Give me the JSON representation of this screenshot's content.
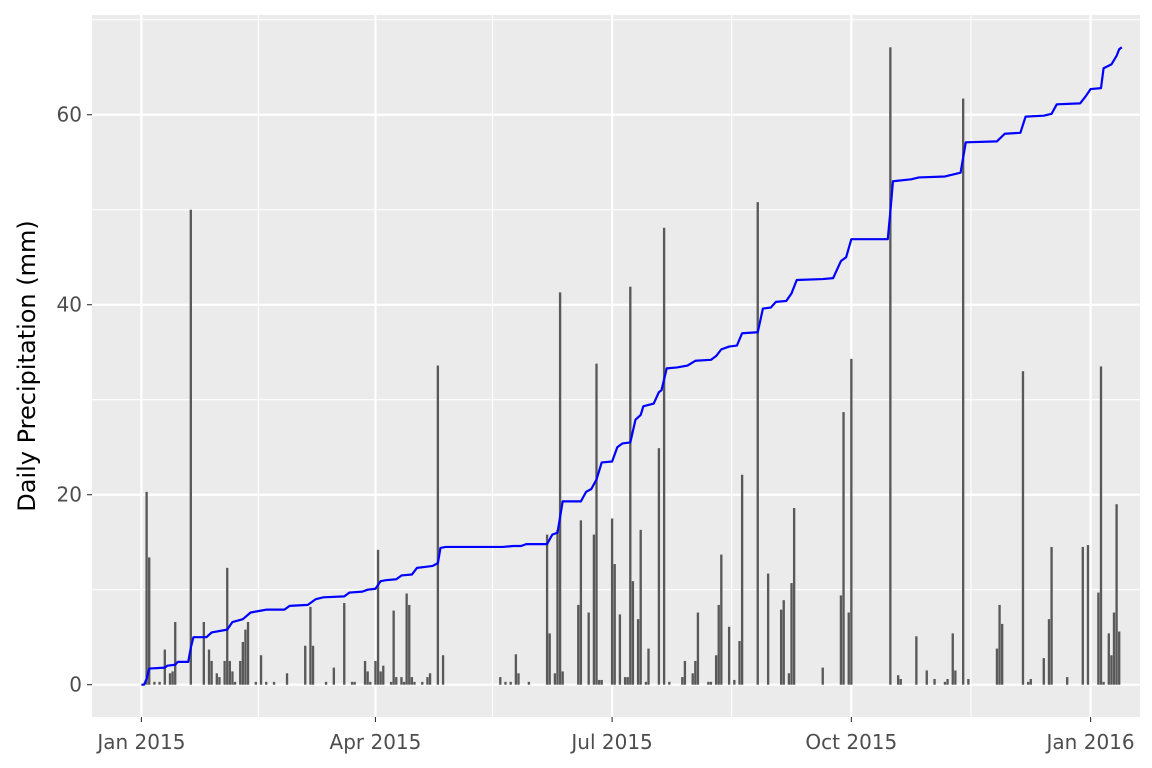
{
  "chart_data": {
    "type": "bar",
    "ylabel": "Daily Precipitation (mm)",
    "xlabel": "",
    "xlim": [
      "2014-12-13",
      "2016-01-20"
    ],
    "ylim": [
      -3.4,
      70.5
    ],
    "grid": true,
    "y_ticks": [
      0,
      20,
      40,
      60
    ],
    "y_tick_labels": [
      "0",
      "20",
      "40",
      "60"
    ],
    "x_ticks": [
      "2015-01-01",
      "2015-04-01",
      "2015-07-01",
      "2015-10-01",
      "2016-01-01"
    ],
    "x_tick_labels": [
      "Jan 2015",
      "Apr 2015",
      "Jul 2015",
      "Oct 2015",
      "Jan 2016"
    ],
    "x_minor_ticks": [
      "2015-02-15",
      "2015-05-16",
      "2015-08-16",
      "2015-11-16"
    ],
    "colors": {
      "panel": "#ebebeb",
      "grid": "#ffffff",
      "bars": "#595959",
      "line": "#0000ff",
      "tick_label": "#4d4d4d"
    },
    "series": [
      {
        "type": "bar",
        "points": [
          [
            "2015-01-03",
            20.3
          ],
          [
            "2015-01-04",
            13.4
          ],
          [
            "2015-01-06",
            0.3
          ],
          [
            "2015-01-08",
            0.3
          ],
          [
            "2015-01-10",
            3.7
          ],
          [
            "2015-01-12",
            1.2
          ],
          [
            "2015-01-13",
            1.4
          ],
          [
            "2015-01-14",
            6.6
          ],
          [
            "2015-01-20",
            50.0
          ],
          [
            "2015-01-25",
            6.6
          ],
          [
            "2015-01-27",
            3.7
          ],
          [
            "2015-01-28",
            2.5
          ],
          [
            "2015-01-30",
            1.2
          ],
          [
            "2015-01-31",
            0.8
          ],
          [
            "2015-02-02",
            2.5
          ],
          [
            "2015-02-03",
            12.3
          ],
          [
            "2015-02-04",
            2.5
          ],
          [
            "2015-02-05",
            1.4
          ],
          [
            "2015-02-06",
            0.3
          ],
          [
            "2015-02-08",
            2.5
          ],
          [
            "2015-02-09",
            4.5
          ],
          [
            "2015-02-10",
            5.8
          ],
          [
            "2015-02-11",
            6.6
          ],
          [
            "2015-02-14",
            0.3
          ],
          [
            "2015-02-16",
            3.1
          ],
          [
            "2015-02-18",
            0.3
          ],
          [
            "2015-02-21",
            0.3
          ],
          [
            "2015-02-26",
            1.2
          ],
          [
            "2015-03-05",
            4.1
          ],
          [
            "2015-03-07",
            8.2
          ],
          [
            "2015-03-08",
            4.1
          ],
          [
            "2015-03-13",
            0.3
          ],
          [
            "2015-03-16",
            1.8
          ],
          [
            "2015-03-20",
            8.6
          ],
          [
            "2015-03-23",
            0.3
          ],
          [
            "2015-03-24",
            0.3
          ],
          [
            "2015-03-28",
            2.5
          ],
          [
            "2015-03-29",
            1.4
          ],
          [
            "2015-03-30",
            0.3
          ],
          [
            "2015-04-01",
            2.5
          ],
          [
            "2015-04-02",
            14.2
          ],
          [
            "2015-04-03",
            1.4
          ],
          [
            "2015-04-04",
            2.0
          ],
          [
            "2015-04-07",
            0.3
          ],
          [
            "2015-04-08",
            7.8
          ],
          [
            "2015-04-09",
            0.8
          ],
          [
            "2015-04-11",
            0.8
          ],
          [
            "2015-04-12",
            0.3
          ],
          [
            "2015-04-13",
            9.6
          ],
          [
            "2015-04-14",
            8.4
          ],
          [
            "2015-04-15",
            0.8
          ],
          [
            "2015-04-16",
            0.3
          ],
          [
            "2015-04-19",
            0.3
          ],
          [
            "2015-04-21",
            0.8
          ],
          [
            "2015-04-22",
            1.2
          ],
          [
            "2015-04-25",
            33.6
          ],
          [
            "2015-04-27",
            3.1
          ],
          [
            "2015-05-19",
            0.8
          ],
          [
            "2015-05-21",
            0.3
          ],
          [
            "2015-05-23",
            0.3
          ],
          [
            "2015-05-25",
            3.2
          ],
          [
            "2015-05-26",
            1.2
          ],
          [
            "2015-05-30",
            0.3
          ],
          [
            "2015-06-06",
            15.8
          ],
          [
            "2015-06-07",
            5.4
          ],
          [
            "2015-06-09",
            1.2
          ],
          [
            "2015-06-10",
            16.3
          ],
          [
            "2015-06-11",
            41.3
          ],
          [
            "2015-06-12",
            1.4
          ],
          [
            "2015-06-18",
            8.4
          ],
          [
            "2015-06-19",
            17.3
          ],
          [
            "2015-06-22",
            7.6
          ],
          [
            "2015-06-24",
            15.8
          ],
          [
            "2015-06-25",
            33.8
          ],
          [
            "2015-06-26",
            0.5
          ],
          [
            "2015-06-27",
            0.5
          ],
          [
            "2015-07-01",
            17.5
          ],
          [
            "2015-07-02",
            12.7
          ],
          [
            "2015-07-04",
            7.4
          ],
          [
            "2015-07-06",
            0.8
          ],
          [
            "2015-07-07",
            0.8
          ],
          [
            "2015-07-08",
            41.9
          ],
          [
            "2015-07-09",
            10.9
          ],
          [
            "2015-07-11",
            6.9
          ],
          [
            "2015-07-12",
            16.3
          ],
          [
            "2015-07-14",
            0.3
          ],
          [
            "2015-07-15",
            3.8
          ],
          [
            "2015-07-19",
            24.9
          ],
          [
            "2015-07-21",
            48.1
          ],
          [
            "2015-07-23",
            0.3
          ],
          [
            "2015-07-28",
            0.8
          ],
          [
            "2015-07-29",
            2.5
          ],
          [
            "2015-08-01",
            1.2
          ],
          [
            "2015-08-02",
            2.5
          ],
          [
            "2015-08-03",
            7.6
          ],
          [
            "2015-08-07",
            0.3
          ],
          [
            "2015-08-08",
            0.3
          ],
          [
            "2015-08-10",
            3.1
          ],
          [
            "2015-08-11",
            8.4
          ],
          [
            "2015-08-12",
            13.7
          ],
          [
            "2015-08-15",
            6.1
          ],
          [
            "2015-08-17",
            0.5
          ],
          [
            "2015-08-19",
            4.6
          ],
          [
            "2015-08-20",
            22.1
          ],
          [
            "2015-08-26",
            50.8
          ],
          [
            "2015-08-30",
            11.7
          ],
          [
            "2015-09-04",
            7.9
          ],
          [
            "2015-09-05",
            8.9
          ],
          [
            "2015-09-07",
            1.2
          ],
          [
            "2015-09-08",
            10.7
          ],
          [
            "2015-09-09",
            18.6
          ],
          [
            "2015-09-20",
            1.8
          ],
          [
            "2015-09-27",
            9.4
          ],
          [
            "2015-09-28",
            28.7
          ],
          [
            "2015-09-30",
            7.6
          ],
          [
            "2015-10-01",
            34.3
          ],
          [
            "2015-10-16",
            67.1
          ],
          [
            "2015-10-19",
            1.0
          ],
          [
            "2015-10-20",
            0.6
          ],
          [
            "2015-10-26",
            5.1
          ],
          [
            "2015-10-30",
            1.5
          ],
          [
            "2015-11-02",
            0.6
          ],
          [
            "2015-11-06",
            0.3
          ],
          [
            "2015-11-07",
            0.6
          ],
          [
            "2015-11-09",
            5.4
          ],
          [
            "2015-11-10",
            1.5
          ],
          [
            "2015-11-13",
            61.7
          ],
          [
            "2015-11-15",
            0.6
          ],
          [
            "2015-11-26",
            3.8
          ],
          [
            "2015-11-27",
            8.4
          ],
          [
            "2015-11-28",
            6.4
          ],
          [
            "2015-12-06",
            33.0
          ],
          [
            "2015-12-08",
            0.3
          ],
          [
            "2015-12-09",
            0.6
          ],
          [
            "2015-12-14",
            2.8
          ],
          [
            "2015-12-16",
            6.9
          ],
          [
            "2015-12-17",
            14.5
          ],
          [
            "2015-12-23",
            0.8
          ],
          [
            "2015-12-29",
            14.5
          ],
          [
            "2015-12-31",
            14.7
          ],
          [
            "2016-01-04",
            9.7
          ],
          [
            "2016-01-05",
            33.5
          ],
          [
            "2016-01-06",
            0.3
          ],
          [
            "2016-01-08",
            5.4
          ],
          [
            "2016-01-09",
            3.1
          ],
          [
            "2016-01-10",
            7.6
          ],
          [
            "2016-01-11",
            19.0
          ],
          [
            "2016-01-12",
            5.6
          ]
        ]
      },
      {
        "type": "line",
        "points": [
          [
            "2015-01-01",
            0.0
          ],
          [
            "2015-01-02",
            0.0
          ],
          [
            "2015-01-03",
            0.6
          ],
          [
            "2015-01-04",
            1.7
          ],
          [
            "2015-01-10",
            1.8
          ],
          [
            "2015-01-11",
            2.0
          ],
          [
            "2015-01-14",
            2.1
          ],
          [
            "2015-01-15",
            2.4
          ],
          [
            "2015-01-19",
            2.4
          ],
          [
            "2015-01-20",
            3.9
          ],
          [
            "2015-01-21",
            5.0
          ],
          [
            "2015-01-26",
            5.0
          ],
          [
            "2015-01-28",
            5.5
          ],
          [
            "2015-02-03",
            5.8
          ],
          [
            "2015-02-05",
            6.6
          ],
          [
            "2015-02-09",
            6.9
          ],
          [
            "2015-02-12",
            7.6
          ],
          [
            "2015-02-16",
            7.8
          ],
          [
            "2015-02-18",
            7.9
          ],
          [
            "2015-02-25",
            7.9
          ],
          [
            "2015-02-27",
            8.3
          ],
          [
            "2015-03-06",
            8.4
          ],
          [
            "2015-03-09",
            9.0
          ],
          [
            "2015-03-12",
            9.2
          ],
          [
            "2015-03-20",
            9.3
          ],
          [
            "2015-03-22",
            9.7
          ],
          [
            "2015-03-27",
            9.8
          ],
          [
            "2015-03-29",
            10.0
          ],
          [
            "2015-04-01",
            10.1
          ],
          [
            "2015-04-03",
            10.9
          ],
          [
            "2015-04-05",
            11.0
          ],
          [
            "2015-04-09",
            11.1
          ],
          [
            "2015-04-11",
            11.5
          ],
          [
            "2015-04-15",
            11.6
          ],
          [
            "2015-04-17",
            12.3
          ],
          [
            "2015-04-20",
            12.4
          ],
          [
            "2015-04-23",
            12.5
          ],
          [
            "2015-04-25",
            12.8
          ],
          [
            "2015-04-26",
            14.4
          ],
          [
            "2015-04-28",
            14.5
          ],
          [
            "2015-05-20",
            14.5
          ],
          [
            "2015-05-24",
            14.6
          ],
          [
            "2015-05-27",
            14.6
          ],
          [
            "2015-05-29",
            14.8
          ],
          [
            "2015-06-06",
            14.8
          ],
          [
            "2015-06-08",
            15.8
          ],
          [
            "2015-06-10",
            16.0
          ],
          [
            "2015-06-12",
            19.3
          ],
          [
            "2015-06-19",
            19.3
          ],
          [
            "2015-06-21",
            20.3
          ],
          [
            "2015-06-23",
            20.6
          ],
          [
            "2015-06-25",
            21.6
          ],
          [
            "2015-06-27",
            23.4
          ],
          [
            "2015-07-01",
            23.5
          ],
          [
            "2015-07-03",
            25.0
          ],
          [
            "2015-07-05",
            25.4
          ],
          [
            "2015-07-08",
            25.5
          ],
          [
            "2015-07-10",
            27.9
          ],
          [
            "2015-07-12",
            28.4
          ],
          [
            "2015-07-13",
            29.3
          ],
          [
            "2015-07-17",
            29.6
          ],
          [
            "2015-07-19",
            30.8
          ],
          [
            "2015-07-20",
            31.0
          ],
          [
            "2015-07-22",
            33.3
          ],
          [
            "2015-07-26",
            33.4
          ],
          [
            "2015-07-30",
            33.6
          ],
          [
            "2015-08-02",
            34.1
          ],
          [
            "2015-08-08",
            34.2
          ],
          [
            "2015-08-10",
            34.6
          ],
          [
            "2015-08-12",
            35.3
          ],
          [
            "2015-08-15",
            35.6
          ],
          [
            "2015-08-18",
            35.7
          ],
          [
            "2015-08-20",
            37.0
          ],
          [
            "2015-08-26",
            37.1
          ],
          [
            "2015-08-28",
            39.6
          ],
          [
            "2015-08-31",
            39.7
          ],
          [
            "2015-09-02",
            40.3
          ],
          [
            "2015-09-06",
            40.4
          ],
          [
            "2015-09-08",
            41.2
          ],
          [
            "2015-09-10",
            42.6
          ],
          [
            "2015-09-20",
            42.7
          ],
          [
            "2015-09-24",
            42.8
          ],
          [
            "2015-09-27",
            44.6
          ],
          [
            "2015-09-29",
            45.0
          ],
          [
            "2015-10-01",
            46.9
          ],
          [
            "2015-10-15",
            46.9
          ],
          [
            "2015-10-16",
            49.8
          ],
          [
            "2015-10-17",
            53.0
          ],
          [
            "2015-10-24",
            53.2
          ],
          [
            "2015-10-27",
            53.4
          ],
          [
            "2015-11-06",
            53.5
          ],
          [
            "2015-11-09",
            53.7
          ],
          [
            "2015-11-12",
            53.9
          ],
          [
            "2015-11-13",
            55.5
          ],
          [
            "2015-11-14",
            57.1
          ],
          [
            "2015-11-26",
            57.2
          ],
          [
            "2015-11-29",
            58.0
          ],
          [
            "2015-12-05",
            58.1
          ],
          [
            "2015-12-07",
            59.8
          ],
          [
            "2015-12-14",
            59.9
          ],
          [
            "2015-12-17",
            60.1
          ],
          [
            "2015-12-19",
            61.1
          ],
          [
            "2015-12-28",
            61.2
          ],
          [
            "2015-12-30",
            61.9
          ],
          [
            "2016-01-01",
            62.7
          ],
          [
            "2016-01-05",
            62.8
          ],
          [
            "2016-01-06",
            64.9
          ],
          [
            "2016-01-09",
            65.3
          ],
          [
            "2016-01-11",
            66.2
          ],
          [
            "2016-01-12",
            66.9
          ],
          [
            "2016-01-13",
            67.1
          ]
        ]
      }
    ]
  }
}
